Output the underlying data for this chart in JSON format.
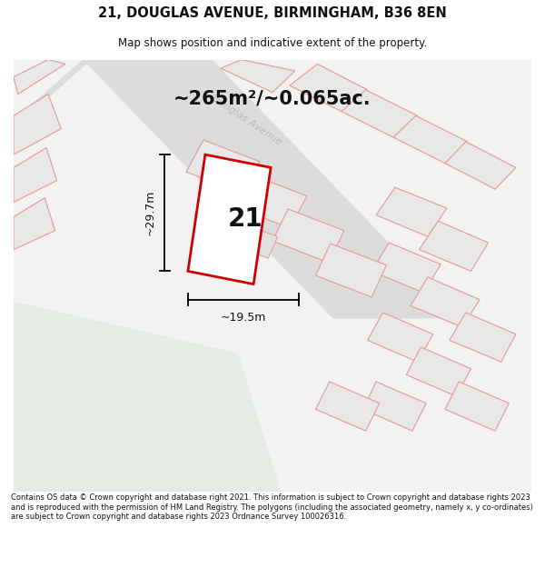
{
  "title_line1": "21, DOUGLAS AVENUE, BIRMINGHAM, B36 8EN",
  "title_line2": "Map shows position and indicative extent of the property.",
  "area_text": "~265m²/~0.065ac.",
  "label_number": "21",
  "dim_vertical": "~29.7m",
  "dim_horizontal": "~19.5m",
  "footer_text": "Contains OS data © Crown copyright and database right 2021. This information is subject to Crown copyright and database rights 2023 and is reproduced with the permission of HM Land Registry. The polygons (including the associated geometry, namely x, y co-ordinates) are subject to Crown copyright and database rights 2023 Ordnance Survey 100026316.",
  "map_bg": "#f2f2f2",
  "plot_outline_color": "#cc0000",
  "parcel_outline_color": "#e8a0a0",
  "parcel_fill": "#e8e8e8",
  "road_fill": "#e0e0e0",
  "green_fill": "#e4ebe4",
  "road_label_color": "#bbbbbb",
  "dim_line_color": "#111111"
}
